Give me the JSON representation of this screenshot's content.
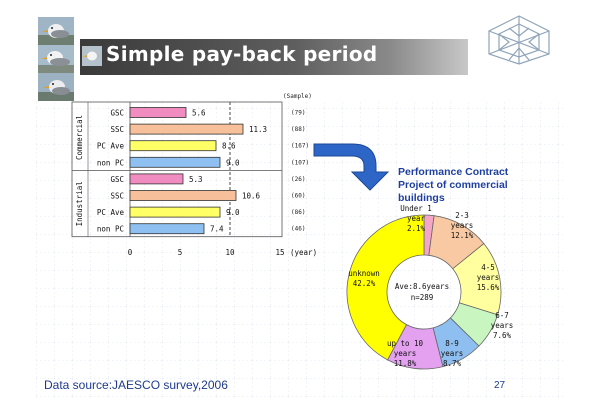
{
  "title": "Simple pay-back period",
  "footer": {
    "source": "Data source:JAESCO survey,2006",
    "page_number": "27"
  },
  "colors": {
    "gsc": "#f08cc0",
    "ssc": "#f7c09a",
    "pc_ave": "#ffff66",
    "non_pc": "#8ec1f2",
    "grid": "#c8d2e6",
    "accent_blue": "#1e3fa0",
    "arrow": "#2e66c8"
  },
  "icons": [
    "seagull-photo",
    "geometric-logo-icon",
    "curved-arrow-icon"
  ],
  "chart_data": [
    {
      "type": "bar",
      "orientation": "horizontal",
      "sample_header": "(Sample)",
      "x_unit_label": "(year)",
      "xlim": [
        0,
        15
      ],
      "x_ticks": [
        "0",
        "5",
        "10",
        "15"
      ],
      "reference_line": 10,
      "groups": [
        {
          "label": "Commercial",
          "rows": [
            {
              "label": "GSC",
              "value": 5.6,
              "value_label": "5.6",
              "sample": "(79)",
              "color_key": "gsc"
            },
            {
              "label": "SSC",
              "value": 11.3,
              "value_label": "11.3",
              "sample": "(88)",
              "color_key": "ssc"
            },
            {
              "label": "PC Ave",
              "value": 8.6,
              "value_label": "8.6",
              "sample": "(167)",
              "color_key": "pc_ave"
            },
            {
              "label": "non PC",
              "value": 9.0,
              "value_label": "9.0",
              "sample": "(107)",
              "color_key": "non_pc"
            }
          ]
        },
        {
          "label": "Industrial",
          "rows": [
            {
              "label": "GSC",
              "value": 5.3,
              "value_label": "5.3",
              "sample": "(26)",
              "color_key": "gsc"
            },
            {
              "label": "SSC",
              "value": 10.6,
              "value_label": "10.6",
              "sample": "(60)",
              "color_key": "ssc"
            },
            {
              "label": "PC Ave",
              "value": 9.0,
              "value_label": "9.0",
              "sample": "(86)",
              "color_key": "pc_ave"
            },
            {
              "label": "non PC",
              "value": 7.4,
              "value_label": "7.4",
              "sample": "(46)",
              "color_key": "non_pc"
            }
          ]
        }
      ]
    },
    {
      "type": "pie",
      "style": "donut",
      "title_lines": [
        "Performance Contract",
        "Project of commercial",
        "buildings"
      ],
      "center_lines": [
        "Ave:8.6years",
        "n=289"
      ],
      "slices": [
        {
          "lines": [
            "Under 1",
            "year",
            "2.1%"
          ],
          "value": 2.1,
          "color": "#f4a6c8"
        },
        {
          "lines": [
            "2-3",
            "years",
            "12.1%"
          ],
          "value": 12.1,
          "color": "#f9c9a3"
        },
        {
          "lines": [
            "4-5",
            "years",
            "15.6%"
          ],
          "value": 15.6,
          "color": "#ffffa0"
        },
        {
          "lines": [
            "6-7",
            "years",
            "7.6%"
          ],
          "value": 7.6,
          "color": "#c8f5c0"
        },
        {
          "lines": [
            "8-9",
            "years",
            "8.7%"
          ],
          "value": 8.7,
          "color": "#8fbff0"
        },
        {
          "lines": [
            "up to 10",
            "years",
            "11.8%"
          ],
          "value": 11.8,
          "color": "#e3a1f0"
        },
        {
          "lines": [
            "unknown",
            "42.2%"
          ],
          "value": 42.2,
          "color": "#ffff00"
        }
      ]
    }
  ]
}
